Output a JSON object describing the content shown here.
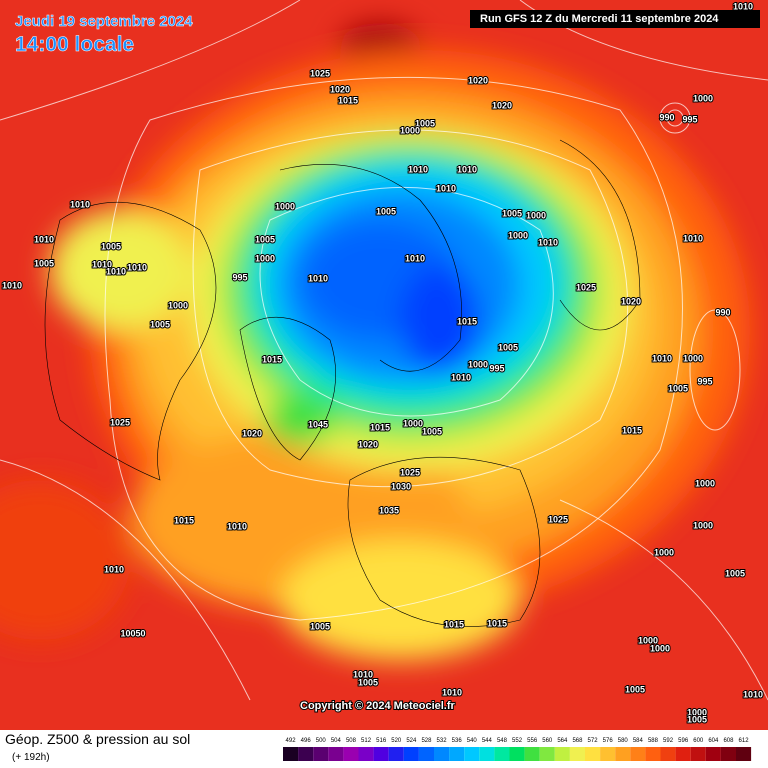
{
  "header": {
    "valid_date": "Jeudi 19 septembre 2024",
    "local_time": "14:00 locale",
    "run": "Run GFS 12 Z du Mercredi 11 septembre 2024"
  },
  "map": {
    "copyright": "Copyright © 2024 Meteociel.fr",
    "isobar_labels": [
      "1025",
      "1020",
      "1015",
      "1020",
      "1020",
      "1005",
      "1000",
      "1010",
      "1010",
      "1005",
      "1005",
      "1010",
      "1010",
      "1010",
      "1010",
      "1000",
      "1005",
      "1000",
      "1005",
      "1000",
      "995",
      "1010",
      "1005",
      "1010",
      "1010",
      "1010",
      "1005",
      "1000",
      "1000",
      "1010",
      "1010",
      "1025",
      "1020",
      "1015",
      "1005",
      "1000",
      "995",
      "1010",
      "1015",
      "1000",
      "990",
      "995",
      "1010",
      "1010",
      "990",
      "1010",
      "1000",
      "1005",
      "995",
      "1025",
      "1020",
      "1045",
      "1015",
      "1000",
      "1005",
      "1020",
      "1015",
      "1025",
      "1030",
      "1035",
      "1025",
      "1000",
      "1000",
      "1000",
      "1005",
      "1015",
      "1010",
      "1010",
      "10050",
      "1005",
      "1015",
      "1015",
      "1010",
      "1005",
      "1000",
      "1000",
      "1005",
      "1010",
      "1010",
      "1000",
      "1005"
    ]
  },
  "footer": {
    "title": "Géop. Z500 & pression au sol",
    "lead": "(+ 192h)"
  },
  "legend": {
    "values": [
      492,
      496,
      500,
      504,
      508,
      512,
      516,
      520,
      524,
      528,
      532,
      536,
      540,
      544,
      548,
      552,
      556,
      560,
      564,
      568,
      572,
      576,
      580,
      584,
      588,
      592,
      596,
      600,
      604,
      608,
      612
    ],
    "colors": [
      "#1a0022",
      "#3c0050",
      "#5a0070",
      "#7a0090",
      "#9a00b0",
      "#7a00c8",
      "#5000e0",
      "#2020f0",
      "#0040ff",
      "#0064ff",
      "#0088ff",
      "#00a8ff",
      "#00c8ff",
      "#00e0e0",
      "#00e8a0",
      "#00e060",
      "#40e040",
      "#80e840",
      "#c0f040",
      "#f0f050",
      "#ffe040",
      "#ffc030",
      "#ffa020",
      "#ff8018",
      "#ff6010",
      "#f04010",
      "#e02010",
      "#c01010",
      "#a00010",
      "#800010",
      "#600010"
    ]
  }
}
